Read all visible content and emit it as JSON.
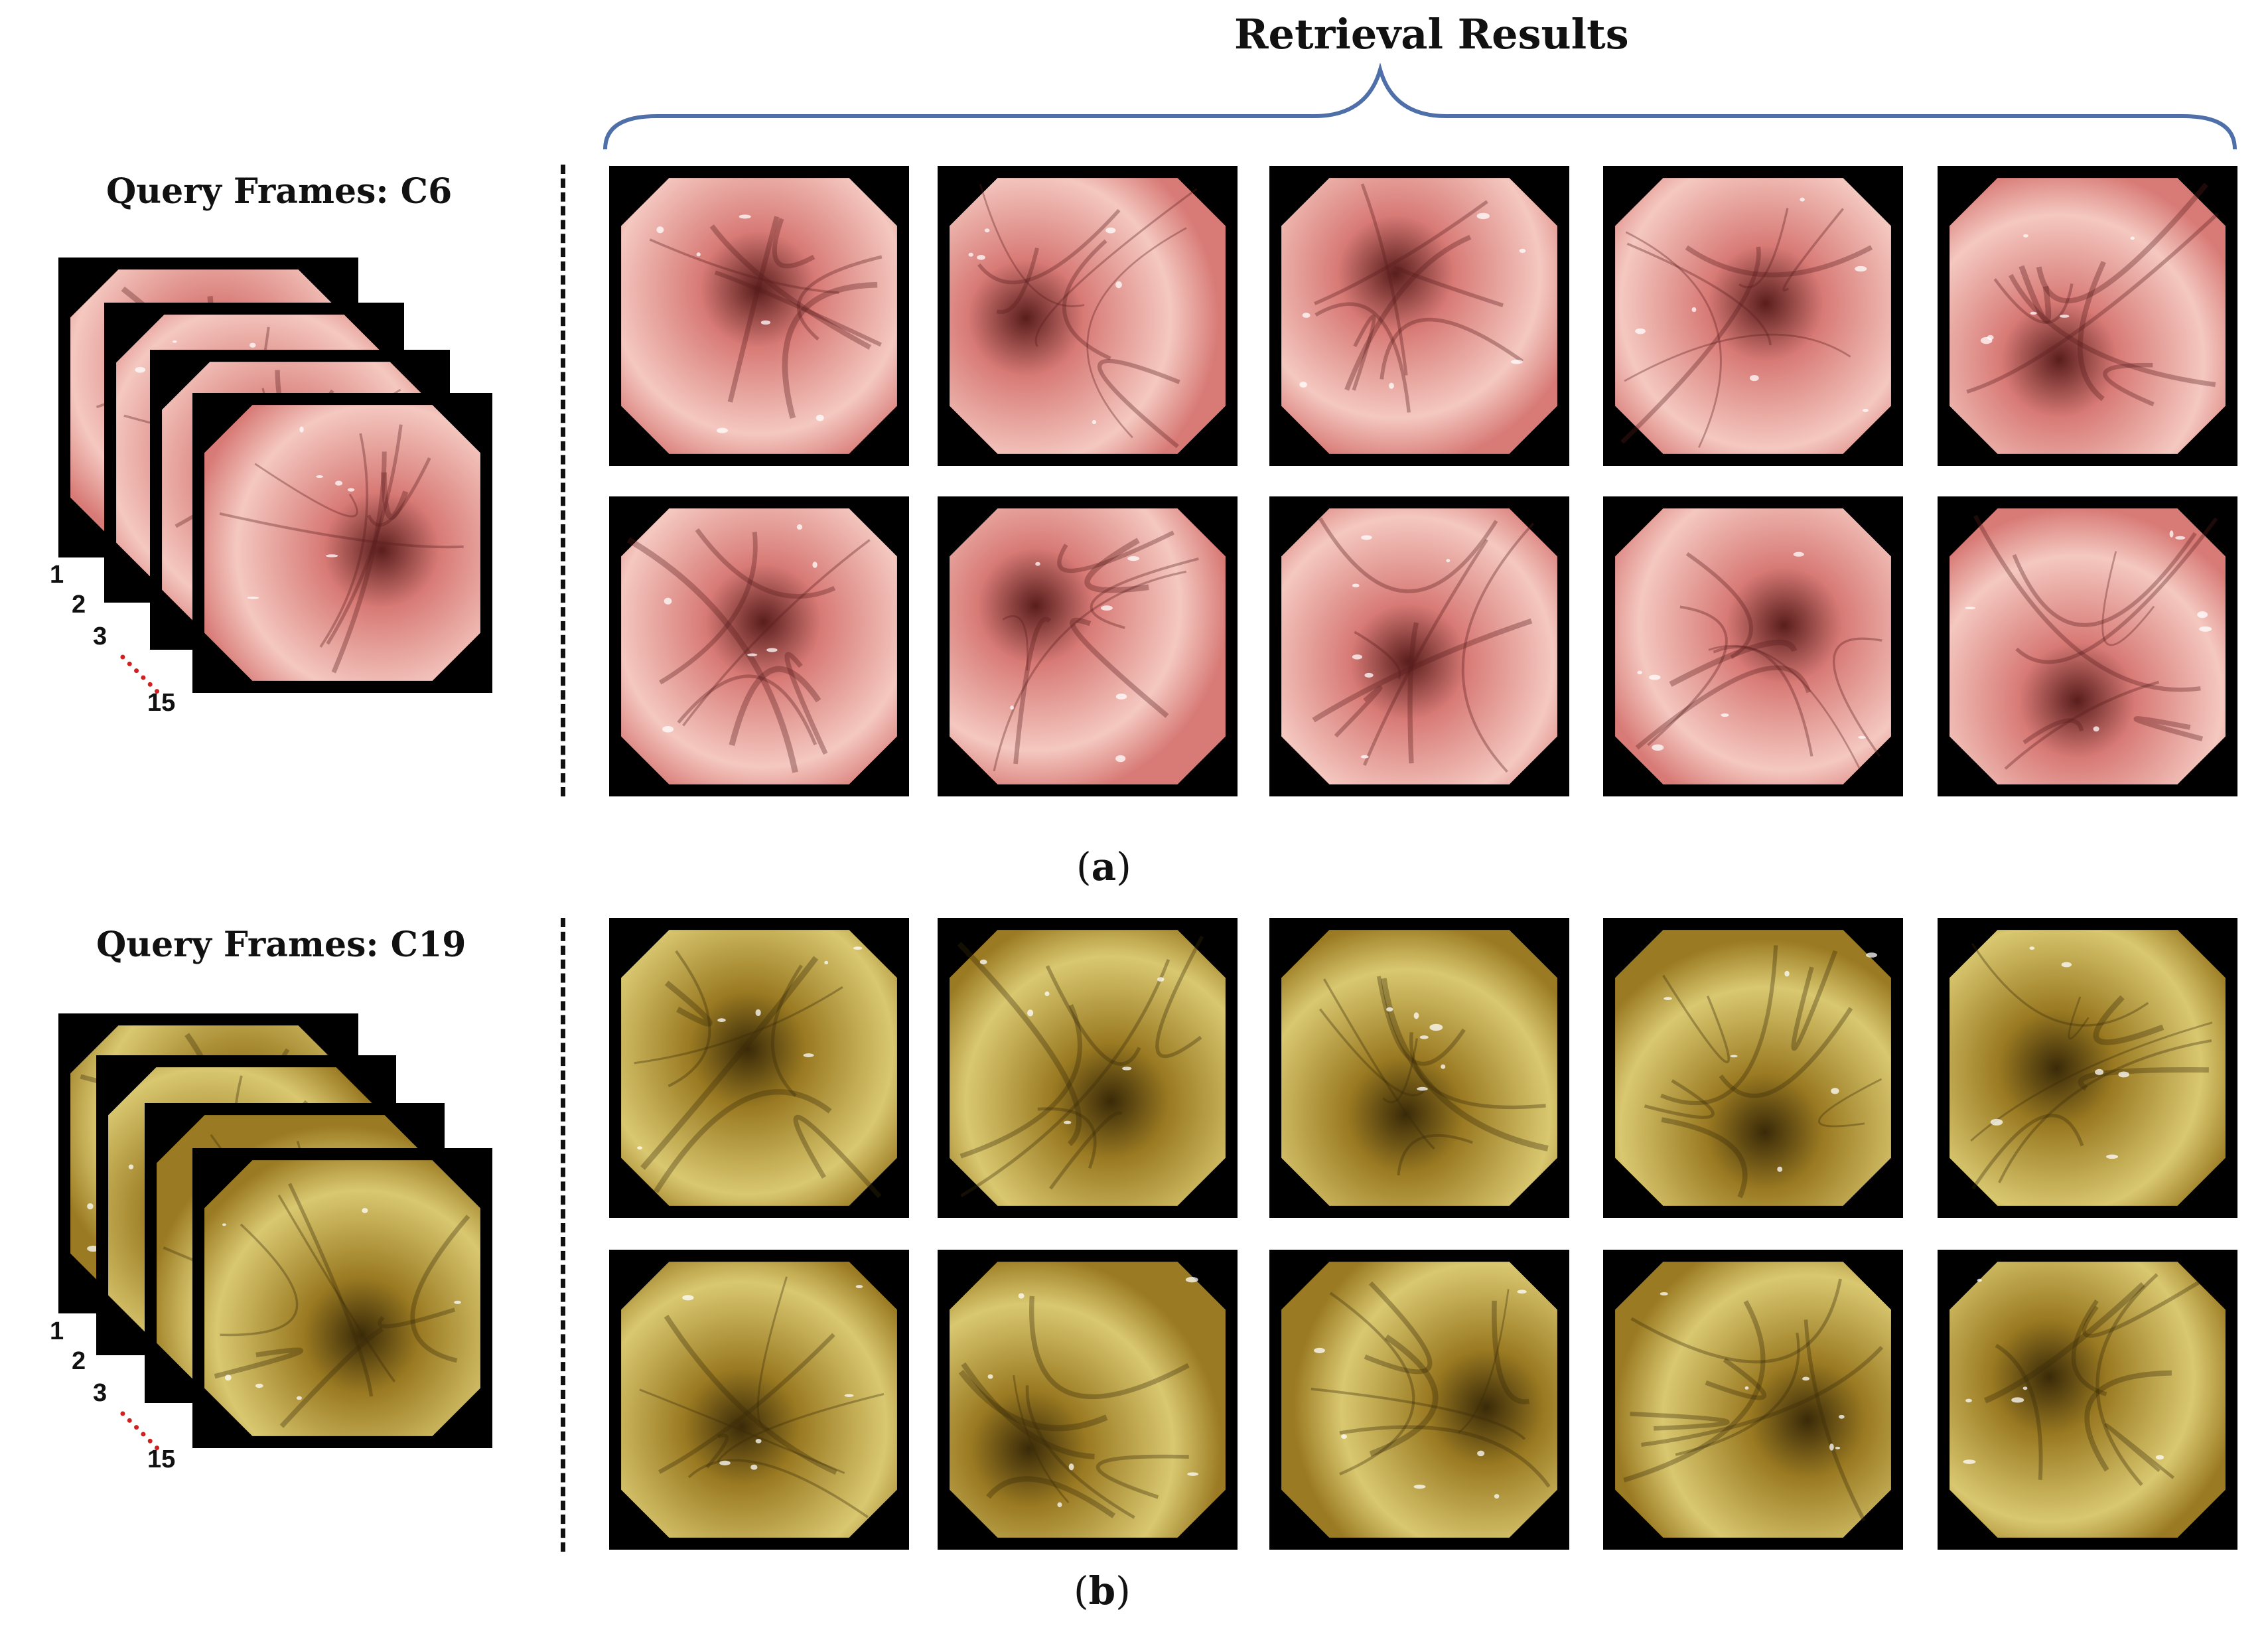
{
  "header": {
    "title": "Retrieval Results"
  },
  "panel_a": {
    "query_label": "Query Frames: C6",
    "frame_numbers": [
      "1",
      "2",
      "3",
      "15"
    ],
    "caption_letter": "a",
    "theme": {
      "tissue": "#d87a76",
      "tissue_light": "#f4c8c0",
      "tissue_dark": "#5a1e1c"
    }
  },
  "panel_b": {
    "query_label": "Query Frames: C19",
    "frame_numbers": [
      "1",
      "2",
      "3",
      "15"
    ],
    "caption_letter": "b",
    "theme": {
      "tissue": "#9a7a22",
      "tissue_light": "#d9c870",
      "tissue_dark": "#3a2a08"
    }
  },
  "colors": {
    "brace": "#4f6fa8",
    "dotted_ellipsis": "#d21f1f"
  }
}
